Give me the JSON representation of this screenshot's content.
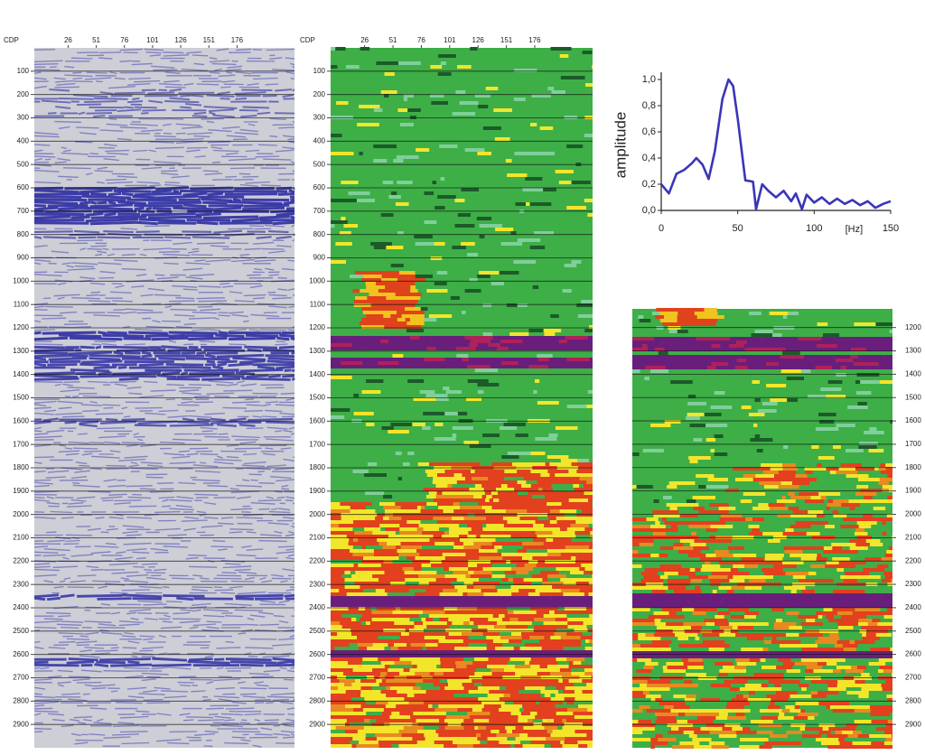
{
  "chart_data": [
    {
      "type": "seismic",
      "palette": "wiggle",
      "x_label": "CDP",
      "xlim": [
        -4,
        227
      ],
      "xticks": [
        26,
        51,
        76,
        101,
        126,
        151,
        176
      ],
      "ylim": [
        0,
        3000
      ],
      "yticks": [
        100,
        200,
        300,
        400,
        500,
        600,
        700,
        800,
        900,
        1000,
        1100,
        1200,
        1300,
        1400,
        1500,
        1600,
        1700,
        1800,
        1900,
        2000,
        2100,
        2200,
        2300,
        2400,
        2500,
        2600,
        2700,
        2800,
        2900
      ],
      "y_axis_side": "left",
      "grid": true
    },
    {
      "type": "seismic",
      "palette": "spectral",
      "x_label": "CDP",
      "xlim": [
        -4,
        227
      ],
      "xticks": [
        26,
        51,
        76,
        101,
        126,
        151,
        176
      ],
      "ylim": [
        0,
        3000
      ],
      "yticks": [
        100,
        200,
        300,
        400,
        500,
        600,
        700,
        800,
        900,
        1000,
        1100,
        1200,
        1300,
        1400,
        1500,
        1600,
        1700,
        1800,
        1900,
        2000,
        2100,
        2200,
        2300,
        2400,
        2500,
        2600,
        2700,
        2800,
        2900
      ],
      "y_axis_side": "left",
      "grid": true
    },
    {
      "type": "line",
      "y_label": "amplitude",
      "x_label": "[Hz]",
      "color": "#3a35b8",
      "x": [
        0,
        5,
        10,
        15,
        20,
        23,
        27,
        31,
        35,
        40,
        44,
        47,
        50,
        55,
        60,
        62,
        66,
        70,
        75,
        80,
        85,
        88,
        92,
        95,
        100,
        105,
        110,
        115,
        120,
        125,
        130,
        135,
        140,
        145,
        150
      ],
      "values": [
        0.2,
        0.13,
        0.28,
        0.31,
        0.36,
        0.4,
        0.35,
        0.24,
        0.45,
        0.85,
        1.0,
        0.95,
        0.7,
        0.23,
        0.22,
        0.01,
        0.2,
        0.15,
        0.1,
        0.15,
        0.07,
        0.13,
        0.01,
        0.12,
        0.06,
        0.1,
        0.05,
        0.09,
        0.05,
        0.08,
        0.04,
        0.07,
        0.02,
        0.05,
        0.07
      ],
      "xlim": [
        0,
        150
      ],
      "xticks": [
        0,
        50,
        100,
        150
      ],
      "ylim": [
        0,
        1.0
      ],
      "yticks": [
        {
          "value": 0,
          "label": "0,0"
        },
        {
          "value": 0.2,
          "label": "0,2"
        },
        {
          "value": 0.4,
          "label": "0,4"
        },
        {
          "value": 0.6,
          "label": "0,6"
        },
        {
          "value": 0.8,
          "label": "0,8"
        },
        {
          "value": 1.0,
          "label": "1,0"
        }
      ]
    },
    {
      "type": "seismic",
      "palette": "spectral",
      "ylim": [
        1120,
        3000
      ],
      "yticks": [
        1200,
        1300,
        1400,
        1500,
        1600,
        1700,
        1800,
        1900,
        2000,
        2100,
        2200,
        2300,
        2400,
        2500,
        2600,
        2700,
        2800,
        2900
      ],
      "y_axis_side": "right",
      "grid": true
    }
  ]
}
